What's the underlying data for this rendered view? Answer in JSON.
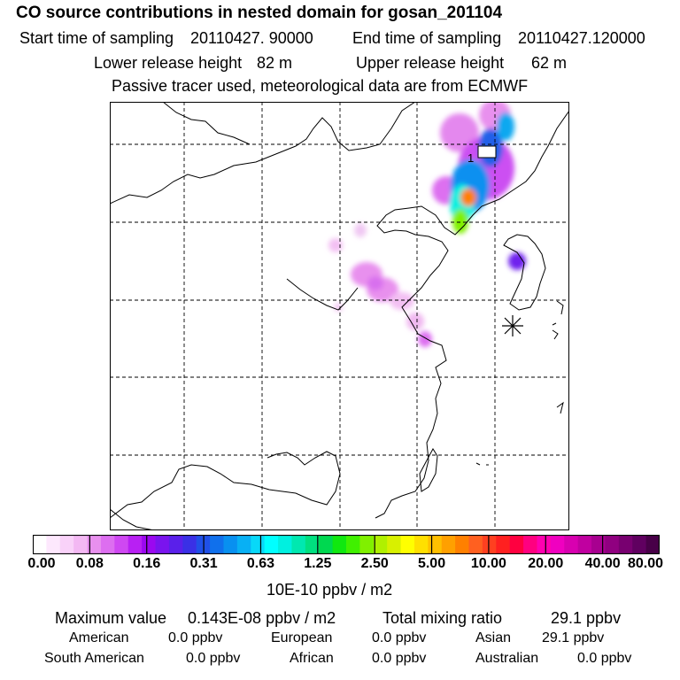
{
  "header": {
    "title": "CO  source contributions in nested domain for gosan_201104",
    "start_label": "Start time of sampling",
    "start_value": "20110427. 90000",
    "end_label": "End time of sampling",
    "end_value": "20110427.120000",
    "lower_label": "Lower release height",
    "lower_value": "82 m",
    "upper_label": "Upper release height",
    "upper_value": "62 m",
    "note": "Passive tracer used, meteorological data are from ECMWF"
  },
  "map": {
    "marker_label": "1",
    "receptor_symbol": "asterisk"
  },
  "colorbar": {
    "ticks": [
      "0.00",
      "0.08",
      "0.16",
      "0.31",
      "0.63",
      "1.25",
      "2.50",
      "5.00",
      "10.00",
      "20.00",
      "40.00",
      "80.00"
    ],
    "unit": "10E-10 ppbv / m2",
    "colors": [
      "#ffffff",
      "#fde8fd",
      "#f9d2f9",
      "#f3b8f3",
      "#e890ee",
      "#dd6ef0",
      "#cf48f2",
      "#b820f3",
      "#9b08f0",
      "#7a14ee",
      "#5a20ea",
      "#3a30e6",
      "#2050e8",
      "#1070ec",
      "#0890f0",
      "#08b0f4",
      "#08d8f8",
      "#00ffff",
      "#00f0e0",
      "#00e8b0",
      "#00e080",
      "#00d850",
      "#10e810",
      "#40f000",
      "#80f000",
      "#b0f000",
      "#d8f000",
      "#ffff00",
      "#ffe000",
      "#ffc000",
      "#ffa000",
      "#ff8000",
      "#ff6020",
      "#ff4020",
      "#ff2020",
      "#ff0040",
      "#ff0080",
      "#ff00b0",
      "#f000c0",
      "#d800b0",
      "#c000a0",
      "#a80090",
      "#900080",
      "#780070",
      "#600060",
      "#480048"
    ]
  },
  "summary": {
    "max_label": "Maximum value",
    "max_value": "0.143E-08 ppbv / m2",
    "total_label": "Total mixing ratio",
    "total_value": "29.1 ppbv",
    "regions": [
      {
        "name": "American",
        "value": "0.0 ppbv"
      },
      {
        "name": "European",
        "value": "0.0 ppbv"
      },
      {
        "name": "Asian",
        "value": "29.1 ppbv"
      },
      {
        "name": "South American",
        "value": "0.0 ppbv"
      },
      {
        "name": "African",
        "value": "0.0 ppbv"
      },
      {
        "name": "Australian",
        "value": "0.0 ppbv"
      }
    ]
  }
}
